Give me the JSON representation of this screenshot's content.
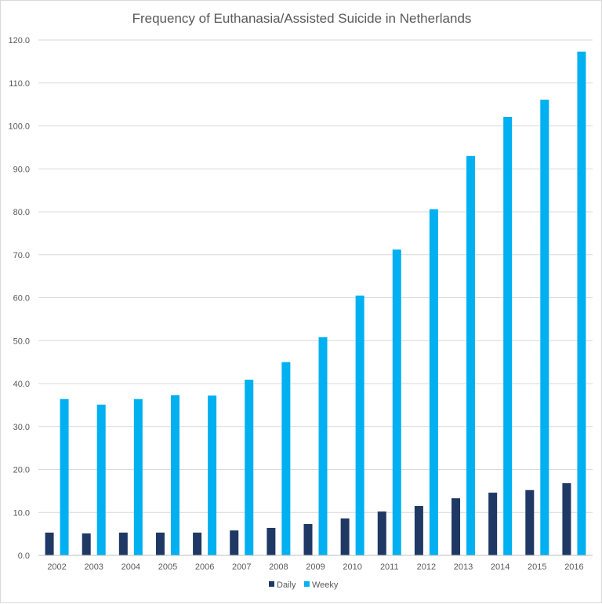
{
  "chart_data": {
    "type": "bar",
    "title": "Frequency of Euthanasia/Assisted Suicide in  Netherlands",
    "xlabel": "",
    "ylabel": "",
    "categories": [
      "2002",
      "2003",
      "2004",
      "2005",
      "2006",
      "2007",
      "2008",
      "2009",
      "2010",
      "2011",
      "2012",
      "2013",
      "2014",
      "2015",
      "2016"
    ],
    "series": [
      {
        "name": "Daily",
        "color": "#1f3864",
        "values": [
          5.3,
          5.1,
          5.3,
          5.3,
          5.3,
          5.8,
          6.4,
          7.3,
          8.6,
          10.2,
          11.5,
          13.3,
          14.6,
          15.2,
          16.8
        ]
      },
      {
        "name": "Weeky",
        "color": "#00b0f0",
        "values": [
          36.4,
          35.1,
          36.4,
          37.3,
          37.2,
          40.9,
          45.0,
          50.8,
          60.5,
          71.2,
          80.6,
          93.0,
          102.1,
          106.1,
          117.3
        ]
      }
    ],
    "ylim": [
      0,
      120
    ],
    "yticks": [
      "0.0",
      "10.0",
      "20.0",
      "30.0",
      "40.0",
      "50.0",
      "60.0",
      "70.0",
      "80.0",
      "90.0",
      "100.0",
      "110.0",
      "120.0"
    ],
    "grid": true,
    "legend_position": "bottom"
  }
}
